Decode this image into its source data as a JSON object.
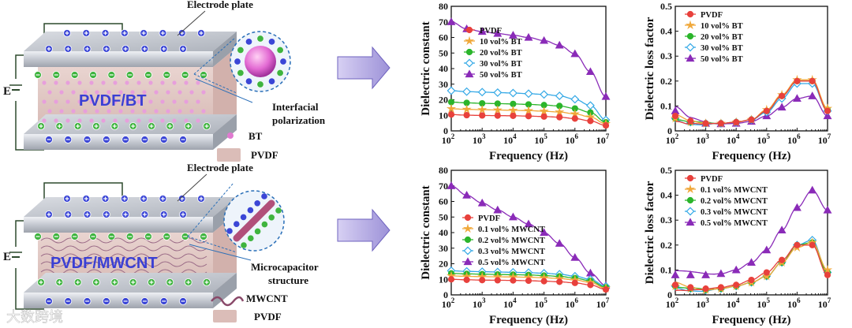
{
  "schematic_top": {
    "electrode_label": "Electrode plate",
    "material_label": "PVDF/BT",
    "mechanism_label_1": "Interfacial",
    "mechanism_label_2": "polarization",
    "legend_filler": "BT",
    "legend_matrix": "PVDF",
    "voltage_label": "E"
  },
  "schematic_bottom": {
    "electrode_label": "Electrode plate",
    "material_label": "PVDF/MWCNT",
    "mechanism_label_1": "Microcapacitor",
    "mechanism_label_2": "structure",
    "legend_filler": "MWCNT",
    "legend_matrix": "PVDF",
    "voltage_label": "E"
  },
  "watermark": "大数跨境",
  "colors": {
    "PVDF": "#e8413c",
    "s2": "#f0a83a",
    "s3": "#2bb52b",
    "s4": "#35a9e6",
    "s5": "#8a2bb8",
    "electrode": "#c9ccd3",
    "matrix": "#e3c9c4",
    "arrow": "#b3a9e0"
  },
  "chart_data": [
    {
      "type": "line",
      "id": "bt_const",
      "xscale": "log",
      "xlim": [
        2,
        7
      ],
      "ylim": [
        0,
        80
      ],
      "xlabel": "Frequency (Hz)",
      "ylabel": "Dielectric constant",
      "xticks": [
        "10^2",
        "10^3",
        "10^4",
        "10^5",
        "10^6",
        "10^7"
      ],
      "yticks": [
        0,
        10,
        20,
        30,
        40,
        50,
        60,
        70,
        80
      ],
      "x": [
        2,
        2.5,
        3,
        3.5,
        4,
        4.5,
        5,
        5.5,
        6,
        6.5,
        7
      ],
      "series": [
        {
          "name": "PVDF",
          "marker": "circle",
          "values": [
            10.5,
            10.1,
            9.9,
            9.8,
            9.7,
            9.5,
            9.2,
            8.8,
            7.9,
            6.4,
            3.5
          ]
        },
        {
          "name": "10 vol% BT",
          "marker": "star",
          "values": [
            14.2,
            13.8,
            13.6,
            13.4,
            13.2,
            13,
            12.6,
            12.1,
            10.9,
            8.9,
            4.5
          ]
        },
        {
          "name": "20 vol% BT",
          "marker": "circle",
          "values": [
            18.5,
            18,
            17.7,
            17.5,
            17.3,
            17,
            16.6,
            16,
            14.4,
            11.8,
            5.5
          ]
        },
        {
          "name": "30 vol% BT",
          "marker": "diamond",
          "values": [
            25.8,
            25.2,
            24.9,
            24.6,
            24.3,
            23.9,
            23.4,
            22.5,
            20.3,
            16.3,
            7
          ]
        },
        {
          "name": "50 vol% BT",
          "marker": "triangle",
          "values": [
            70,
            65.5,
            63.8,
            62.5,
            61.4,
            60,
            58,
            55,
            49.5,
            38,
            22
          ]
        }
      ]
    },
    {
      "type": "line",
      "id": "bt_loss",
      "xscale": "log",
      "xlim": [
        2,
        7
      ],
      "ylim": [
        0,
        0.5
      ],
      "xlabel": "Frequency (Hz)",
      "ylabel": "Dielectric loss factor",
      "xticks": [
        "10^2",
        "10^3",
        "10^4",
        "10^5",
        "10^6",
        "10^7"
      ],
      "yticks": [
        0,
        0.1,
        0.2,
        0.3,
        0.4,
        0.5
      ],
      "x": [
        2,
        2.5,
        3,
        3.5,
        4,
        4.5,
        5,
        5.5,
        6,
        6.5,
        7
      ],
      "series": [
        {
          "name": "PVDF",
          "marker": "circle",
          "values": [
            0.06,
            0.04,
            0.03,
            0.03,
            0.035,
            0.045,
            0.08,
            0.14,
            0.2,
            0.2,
            0.08
          ]
        },
        {
          "name": "10 vol% BT",
          "marker": "star",
          "values": [
            0.05,
            0.035,
            0.03,
            0.03,
            0.035,
            0.045,
            0.085,
            0.145,
            0.205,
            0.205,
            0.09
          ]
        },
        {
          "name": "20 vol% BT",
          "marker": "circle",
          "values": [
            0.05,
            0.035,
            0.03,
            0.03,
            0.035,
            0.045,
            0.08,
            0.14,
            0.2,
            0.2,
            0.085
          ]
        },
        {
          "name": "30 vol% BT",
          "marker": "diamond",
          "values": [
            0.05,
            0.035,
            0.03,
            0.03,
            0.035,
            0.045,
            0.075,
            0.13,
            0.19,
            0.19,
            0.08
          ]
        },
        {
          "name": "50 vol% BT",
          "marker": "triangle",
          "values": [
            0.08,
            0.04,
            0.03,
            0.028,
            0.03,
            0.038,
            0.06,
            0.095,
            0.13,
            0.14,
            0.06
          ]
        }
      ]
    },
    {
      "type": "line",
      "id": "cnt_const",
      "xscale": "log",
      "xlim": [
        2,
        7
      ],
      "ylim": [
        0,
        80
      ],
      "xlabel": "Frequency (Hz)",
      "ylabel": "Dielectric constant",
      "xticks": [
        "10^2",
        "10^3",
        "10^4",
        "10^5",
        "10^6",
        "10^7"
      ],
      "yticks": [
        0,
        10,
        20,
        30,
        40,
        50,
        60,
        70,
        80
      ],
      "x": [
        2,
        2.5,
        3,
        3.5,
        4,
        4.5,
        5,
        5.5,
        6,
        6.5,
        7
      ],
      "series": [
        {
          "name": "PVDF",
          "marker": "circle",
          "values": [
            10,
            9.7,
            9.5,
            9.4,
            9.3,
            9.1,
            8.8,
            8.4,
            7.7,
            6.4,
            3.5
          ]
        },
        {
          "name": "0.1 vol% MWCNT",
          "marker": "star",
          "values": [
            12.2,
            11.9,
            11.7,
            11.6,
            11.5,
            11.3,
            11,
            10.5,
            9.6,
            8,
            4.2
          ]
        },
        {
          "name": "0.2 vol% MWCNT",
          "marker": "circle",
          "values": [
            13.8,
            13.5,
            13.3,
            13.1,
            13,
            12.8,
            12.4,
            11.9,
            10.8,
            9,
            4.8
          ]
        },
        {
          "name": "0.3 vol% MWCNT",
          "marker": "diamond",
          "values": [
            15.5,
            15.1,
            14.9,
            14.7,
            14.5,
            14.3,
            13.9,
            13.3,
            12,
            10,
            5.5
          ]
        },
        {
          "name": "0.5 vol% MWCNT",
          "marker": "triangle",
          "values": [
            70,
            64,
            59,
            54.5,
            50,
            45.5,
            40,
            33,
            24,
            14,
            6
          ]
        }
      ]
    },
    {
      "type": "line",
      "id": "cnt_loss",
      "xscale": "log",
      "xlim": [
        2,
        7
      ],
      "ylim": [
        0,
        0.5
      ],
      "xlabel": "Frequency (Hz)",
      "ylabel": "Dielectric loss factor",
      "xticks": [
        "10^2",
        "10^3",
        "10^4",
        "10^5",
        "10^6",
        "10^7"
      ],
      "yticks": [
        0,
        0.1,
        0.2,
        0.3,
        0.4,
        0.5
      ],
      "x": [
        2,
        2.5,
        3,
        3.5,
        4,
        4.5,
        5,
        5.5,
        6,
        6.5,
        7
      ],
      "series": [
        {
          "name": "PVDF",
          "marker": "circle",
          "values": [
            0.04,
            0.03,
            0.025,
            0.03,
            0.04,
            0.06,
            0.09,
            0.14,
            0.2,
            0.2,
            0.08
          ]
        },
        {
          "name": "0.1 vol% MWCNT",
          "marker": "star",
          "values": [
            0.035,
            0.025,
            0.02,
            0.025,
            0.035,
            0.05,
            0.075,
            0.13,
            0.19,
            0.21,
            0.1
          ]
        },
        {
          "name": "0.2 vol% MWCNT",
          "marker": "circle",
          "values": [
            0.035,
            0.025,
            0.02,
            0.025,
            0.035,
            0.05,
            0.075,
            0.13,
            0.2,
            0.21,
            0.09
          ]
        },
        {
          "name": "0.3 vol% MWCNT",
          "marker": "diamond",
          "values": [
            0.035,
            0.025,
            0.02,
            0.025,
            0.035,
            0.05,
            0.075,
            0.13,
            0.2,
            0.22,
            0.09
          ]
        },
        {
          "name": "0.5 vol% MWCNT",
          "marker": "triangle",
          "values": [
            0.08,
            0.08,
            0.08,
            0.085,
            0.1,
            0.13,
            0.18,
            0.26,
            0.35,
            0.42,
            0.34
          ]
        }
      ]
    }
  ]
}
